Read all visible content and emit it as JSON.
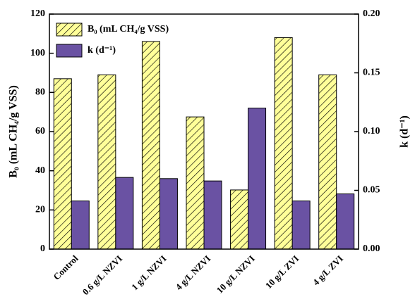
{
  "chart_data": {
    "type": "bar",
    "categories": [
      "Control",
      "0.6 g/L NZVI",
      "1 g/L NZVI",
      "4 g/L NZVI",
      "10 g/L NZVI",
      "10 g/L ZVI",
      "4 g/L ZVI"
    ],
    "series": [
      {
        "name": "B₀ (mL CH₄/g VSS)",
        "color": "#ffff99",
        "values": [
          87,
          89,
          106,
          67.5,
          30.2,
          108,
          89
        ]
      },
      {
        "name": "k (d⁻¹)",
        "color": "#6a52a3",
        "axis": "y2",
        "values": [
          0.041,
          0.061,
          0.06,
          0.058,
          0.12,
          0.041,
          0.047
        ]
      }
    ],
    "ylabel": "B₀ (mL CH₄/g VSS)",
    "y2label": "k (d⁻¹)",
    "ylim": [
      0,
      120
    ],
    "yticks": [
      0,
      20,
      40,
      60,
      80,
      100,
      120
    ],
    "y2lim": [
      0,
      0.2
    ],
    "y2ticks": [
      {
        "value": 0,
        "label": "0.00"
      },
      {
        "value": 0.05,
        "label": "0.05"
      },
      {
        "value": 0.1,
        "label": "0.10"
      },
      {
        "value": 0.15,
        "label": "0.15"
      },
      {
        "value": 0.2,
        "label": "0.20"
      }
    ],
    "legend": "upper left"
  }
}
